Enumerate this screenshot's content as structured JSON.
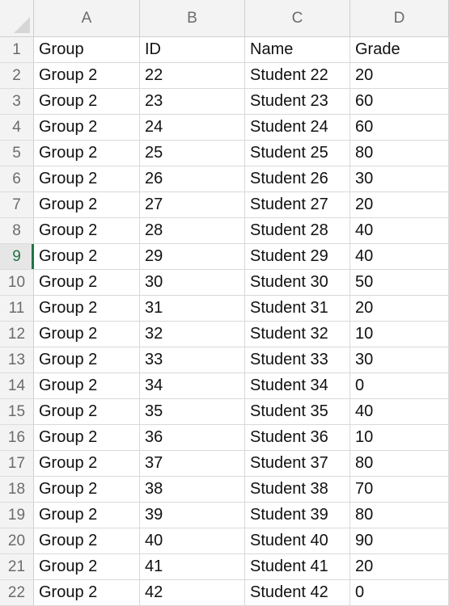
{
  "columns": [
    "A",
    "B",
    "C",
    "D"
  ],
  "selected_row": 9,
  "rows": [
    {
      "num": "1",
      "cells": [
        "Group",
        "ID",
        "Name",
        "Grade"
      ]
    },
    {
      "num": "2",
      "cells": [
        "Group 2",
        "22",
        "Student 22",
        "20"
      ]
    },
    {
      "num": "3",
      "cells": [
        "Group 2",
        "23",
        "Student 23",
        "60"
      ]
    },
    {
      "num": "4",
      "cells": [
        "Group 2",
        "24",
        "Student 24",
        "60"
      ]
    },
    {
      "num": "5",
      "cells": [
        "Group 2",
        "25",
        "Student 25",
        "80"
      ]
    },
    {
      "num": "6",
      "cells": [
        "Group 2",
        "26",
        "Student 26",
        "30"
      ]
    },
    {
      "num": "7",
      "cells": [
        "Group 2",
        "27",
        "Student 27",
        "20"
      ]
    },
    {
      "num": "8",
      "cells": [
        "Group 2",
        "28",
        "Student 28",
        "40"
      ]
    },
    {
      "num": "9",
      "cells": [
        "Group 2",
        "29",
        "Student 29",
        "40"
      ]
    },
    {
      "num": "10",
      "cells": [
        "Group 2",
        "30",
        "Student 30",
        "50"
      ]
    },
    {
      "num": "11",
      "cells": [
        "Group 2",
        "31",
        "Student 31",
        "20"
      ]
    },
    {
      "num": "12",
      "cells": [
        "Group 2",
        "32",
        "Student 32",
        "10"
      ]
    },
    {
      "num": "13",
      "cells": [
        "Group 2",
        "33",
        "Student 33",
        "30"
      ]
    },
    {
      "num": "14",
      "cells": [
        "Group 2",
        "34",
        "Student 34",
        "0"
      ]
    },
    {
      "num": "15",
      "cells": [
        "Group 2",
        "35",
        "Student 35",
        "40"
      ]
    },
    {
      "num": "16",
      "cells": [
        "Group 2",
        "36",
        "Student 36",
        "10"
      ]
    },
    {
      "num": "17",
      "cells": [
        "Group 2",
        "37",
        "Student 37",
        "80"
      ]
    },
    {
      "num": "18",
      "cells": [
        "Group 2",
        "38",
        "Student 38",
        "70"
      ]
    },
    {
      "num": "19",
      "cells": [
        "Group 2",
        "39",
        "Student 39",
        "80"
      ]
    },
    {
      "num": "20",
      "cells": [
        "Group 2",
        "40",
        "Student 40",
        "90"
      ]
    },
    {
      "num": "21",
      "cells": [
        "Group 2",
        "41",
        "Student 41",
        "20"
      ]
    },
    {
      "num": "22",
      "cells": [
        "Group 2",
        "42",
        "Student 42",
        "0"
      ]
    }
  ],
  "colors": {
    "selection_accent": "#217346",
    "header_bg": "#f3f3f3",
    "header_text": "#6b6b6b",
    "gridline": "#d9d9d9"
  },
  "icons": {
    "corner": "select-all-triangle-icon"
  }
}
